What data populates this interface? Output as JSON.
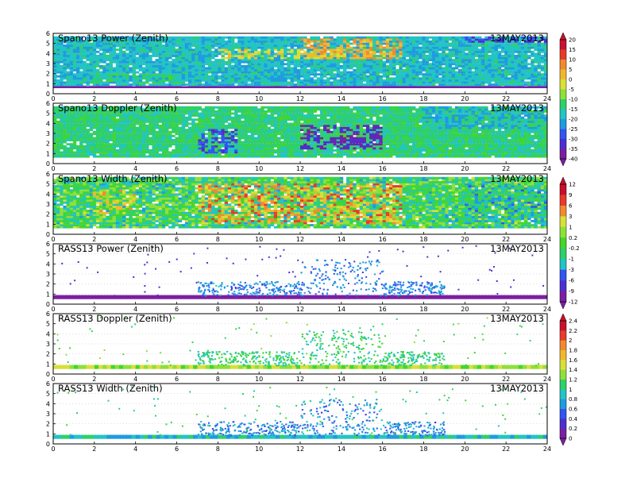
{
  "figure": {
    "date_label": "13MAY2013"
  },
  "chart_data": [
    {
      "type": "heatmap",
      "title": "Spano13 Power (Zenith)",
      "date": "13MAY2013",
      "xlabel": "",
      "ylabel": "",
      "xlim": [
        0,
        24
      ],
      "ylim": [
        0,
        6
      ],
      "x_ticks": [
        "0",
        "2",
        "4",
        "6",
        "8",
        "10",
        "12",
        "14",
        "16",
        "18",
        "20",
        "22",
        "24"
      ],
      "y_ticks": [
        "0",
        "1",
        "2",
        "3",
        "4",
        "5",
        "6"
      ],
      "colorbar_ticks": [
        "20",
        "15",
        "10",
        "5",
        "0",
        "-5",
        "-10",
        "-15",
        "-20",
        "-25",
        "-30",
        "-35",
        "-40"
      ],
      "colorbar_group": 0,
      "base_value": -20,
      "low_layer_value": -40,
      "data_top_km": 5.7,
      "features": [
        {
          "x": [
            8,
            14
          ],
          "y": [
            3.5,
            4.5
          ],
          "value": 0
        },
        {
          "x": [
            12,
            17
          ],
          "y": [
            3.5,
            5.5
          ],
          "value": 5
        },
        {
          "x": [
            20,
            24
          ],
          "y": [
            5.0,
            6.0
          ],
          "value": -30
        },
        {
          "x": [
            2,
            6
          ],
          "y": [
            1.0,
            2.0
          ],
          "value": -15
        }
      ]
    },
    {
      "type": "heatmap",
      "title": "Spano13 Doppler (Zenith)",
      "date": "13MAY2013",
      "xlabel": "",
      "ylabel": "",
      "xlim": [
        0,
        24
      ],
      "ylim": [
        0,
        6
      ],
      "x_ticks": [
        "0",
        "2",
        "4",
        "6",
        "8",
        "10",
        "12",
        "14",
        "16",
        "18",
        "20",
        "22",
        "24"
      ],
      "y_ticks": [
        "0",
        "1",
        "2",
        "3",
        "4",
        "5",
        "6"
      ],
      "colorbar_group": 0,
      "base_value": -15,
      "low_layer_value": null,
      "data_top_km": 5.7,
      "features": [
        {
          "x": [
            7,
            9
          ],
          "y": [
            1.0,
            3.5
          ],
          "value": -30
        },
        {
          "x": [
            12,
            16
          ],
          "y": [
            1.5,
            3.8
          ],
          "value": -35
        },
        {
          "x": [
            18,
            24
          ],
          "y": [
            3.5,
            5.7
          ],
          "value": -22
        }
      ]
    },
    {
      "type": "heatmap",
      "title": "Spano13 Width (Zenith)",
      "date": "13MAY2013",
      "xlabel": "",
      "ylabel": "",
      "xlim": [
        0,
        24
      ],
      "ylim": [
        0,
        6
      ],
      "x_ticks": [
        "0",
        "2",
        "4",
        "6",
        "8",
        "10",
        "12",
        "14",
        "16",
        "18",
        "20",
        "22",
        "24"
      ],
      "y_ticks": [
        "0",
        "1",
        "2",
        "3",
        "4",
        "5",
        "6"
      ],
      "colorbar_ticks": [
        "12",
        "9",
        "6",
        "3",
        "1",
        "0.2",
        "-0.2",
        "-1",
        "-3",
        "-6",
        "-9",
        "-12"
      ],
      "colorbar_group": 1,
      "base_value": -1,
      "low_layer_value": null,
      "data_top_km": 5.7,
      "features": [
        {
          "x": [
            7,
            17
          ],
          "y": [
            1.0,
            5.0
          ],
          "value": 6
        },
        {
          "x": [
            2,
            4
          ],
          "y": [
            2.0,
            4.5
          ],
          "value": 3
        },
        {
          "x": [
            20,
            24
          ],
          "y": [
            1.0,
            5.0
          ],
          "value": -3
        }
      ]
    },
    {
      "type": "heatmap",
      "title": "RASS13 Power (Zenith)",
      "date": "13MAY2013",
      "xlabel": "",
      "ylabel": "",
      "xlim": [
        0,
        24
      ],
      "ylim": [
        0,
        6
      ],
      "x_ticks": [
        "0",
        "2",
        "4",
        "6",
        "8",
        "10",
        "12",
        "14",
        "16",
        "18",
        "20",
        "22",
        "24"
      ],
      "y_ticks": [
        "0",
        "1",
        "2",
        "3",
        "4",
        "5",
        "6"
      ],
      "colorbar_group": 1,
      "layer_km": [
        0.5,
        0.9
      ],
      "layer_value": -12,
      "scatter_value": -9,
      "cluster_value": -6
    },
    {
      "type": "heatmap",
      "title": "RASS13 Doppler (Zenith)",
      "date": "13MAY2013",
      "xlabel": "",
      "ylabel": "",
      "xlim": [
        0,
        24
      ],
      "ylim": [
        0,
        6
      ],
      "x_ticks": [
        "0",
        "2",
        "4",
        "6",
        "8",
        "10",
        "12",
        "14",
        "16",
        "18",
        "20",
        "22",
        "24"
      ],
      "y_ticks": [
        "0",
        "1",
        "2",
        "3",
        "4",
        "5",
        "6"
      ],
      "colorbar_ticks": [
        "2.4",
        "2.2",
        "2",
        "1.8",
        "1.6",
        "1.4",
        "1.2",
        "1",
        "0.8",
        "0.6",
        "0.4",
        "0.2",
        "0"
      ],
      "colorbar_group": 2,
      "layer_km": [
        0.5,
        0.9
      ],
      "layer_value": 1.4,
      "scatter_value": 1.2,
      "cluster_value": 1.0
    },
    {
      "type": "heatmap",
      "title": "RASS13 Width (Zenith)",
      "date": "13MAY2013",
      "xlabel": "",
      "ylabel": "",
      "xlim": [
        0,
        24
      ],
      "ylim": [
        0,
        6
      ],
      "x_ticks": [
        "0",
        "2",
        "4",
        "6",
        "8",
        "10",
        "12",
        "14",
        "16",
        "18",
        "20",
        "22",
        "24"
      ],
      "y_ticks": [
        "0",
        "1",
        "2",
        "3",
        "4",
        "5",
        "6"
      ],
      "colorbar_group": 2,
      "layer_km": [
        0.5,
        0.9
      ],
      "layer_value": 0.8,
      "scatter_value": 1.0,
      "cluster_value": 0.6
    }
  ],
  "colormap": [
    "#7a1fa2",
    "#4b2fd0",
    "#3355f0",
    "#1f9be0",
    "#22c4c4",
    "#2fd06a",
    "#44d62c",
    "#8ee03a",
    "#d8e03a",
    "#f0b830",
    "#f08a30",
    "#e83a2a",
    "#c8102e"
  ]
}
